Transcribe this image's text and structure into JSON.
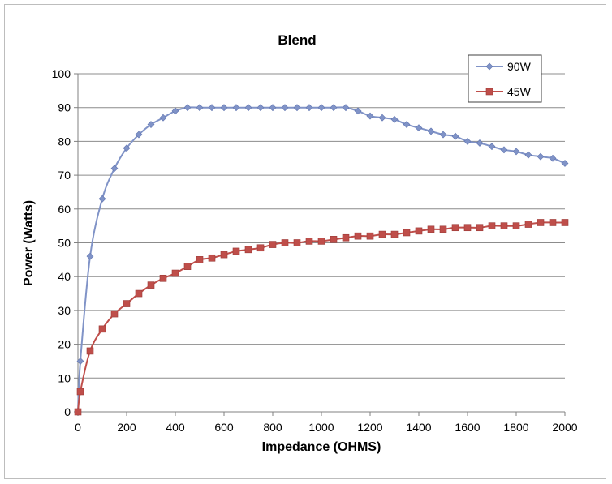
{
  "chart_data": {
    "type": "line",
    "title": "Blend",
    "xlabel": "Impedance (OHMS)",
    "ylabel": "Power (Watts)",
    "xlim": [
      0,
      2000
    ],
    "ylim": [
      0,
      100
    ],
    "x_ticks": [
      0,
      200,
      400,
      600,
      800,
      1000,
      1200,
      1400,
      1600,
      1800,
      2000
    ],
    "y_ticks": [
      0,
      10,
      20,
      30,
      40,
      50,
      60,
      70,
      80,
      90,
      100
    ],
    "grid": "horizontal",
    "legend_position": "top-right",
    "series": [
      {
        "name": "90W",
        "color": "#8093c7",
        "marker": "diamond",
        "x": [
          0,
          10,
          50,
          100,
          150,
          200,
          250,
          300,
          350,
          400,
          450,
          500,
          550,
          600,
          650,
          700,
          750,
          800,
          850,
          900,
          950,
          1000,
          1050,
          1100,
          1150,
          1200,
          1250,
          1300,
          1350,
          1400,
          1450,
          1500,
          1550,
          1600,
          1650,
          1700,
          1750,
          1800,
          1850,
          1900,
          1950,
          2000
        ],
        "values": [
          0,
          15,
          46,
          63,
          72,
          78,
          82,
          85,
          87,
          89,
          90,
          90,
          90,
          90,
          90,
          90,
          90,
          90,
          90,
          90,
          90,
          90,
          90,
          90,
          89,
          87.5,
          87,
          86.5,
          85,
          84,
          83,
          82,
          81.5,
          80,
          79.5,
          78.5,
          77.5,
          77,
          76,
          75.5,
          75,
          73.5
        ]
      },
      {
        "name": "45W",
        "color": "#bf4e4a",
        "marker": "square",
        "x": [
          0,
          10,
          50,
          100,
          150,
          200,
          250,
          300,
          350,
          400,
          450,
          500,
          550,
          600,
          650,
          700,
          750,
          800,
          850,
          900,
          950,
          1000,
          1050,
          1100,
          1150,
          1200,
          1250,
          1300,
          1350,
          1400,
          1450,
          1500,
          1550,
          1600,
          1650,
          1700,
          1750,
          1800,
          1850,
          1900,
          1950,
          2000
        ],
        "values": [
          0,
          6,
          18,
          24.5,
          29,
          32,
          35,
          37.5,
          39.5,
          41,
          43,
          45,
          45.5,
          46.5,
          47.5,
          48,
          48.5,
          49.5,
          50,
          50,
          50.5,
          50.5,
          51,
          51.5,
          52,
          52,
          52.5,
          52.5,
          53,
          53.5,
          54,
          54,
          54.5,
          54.5,
          54.5,
          55,
          55,
          55,
          55.5,
          56,
          56,
          56
        ]
      }
    ]
  }
}
